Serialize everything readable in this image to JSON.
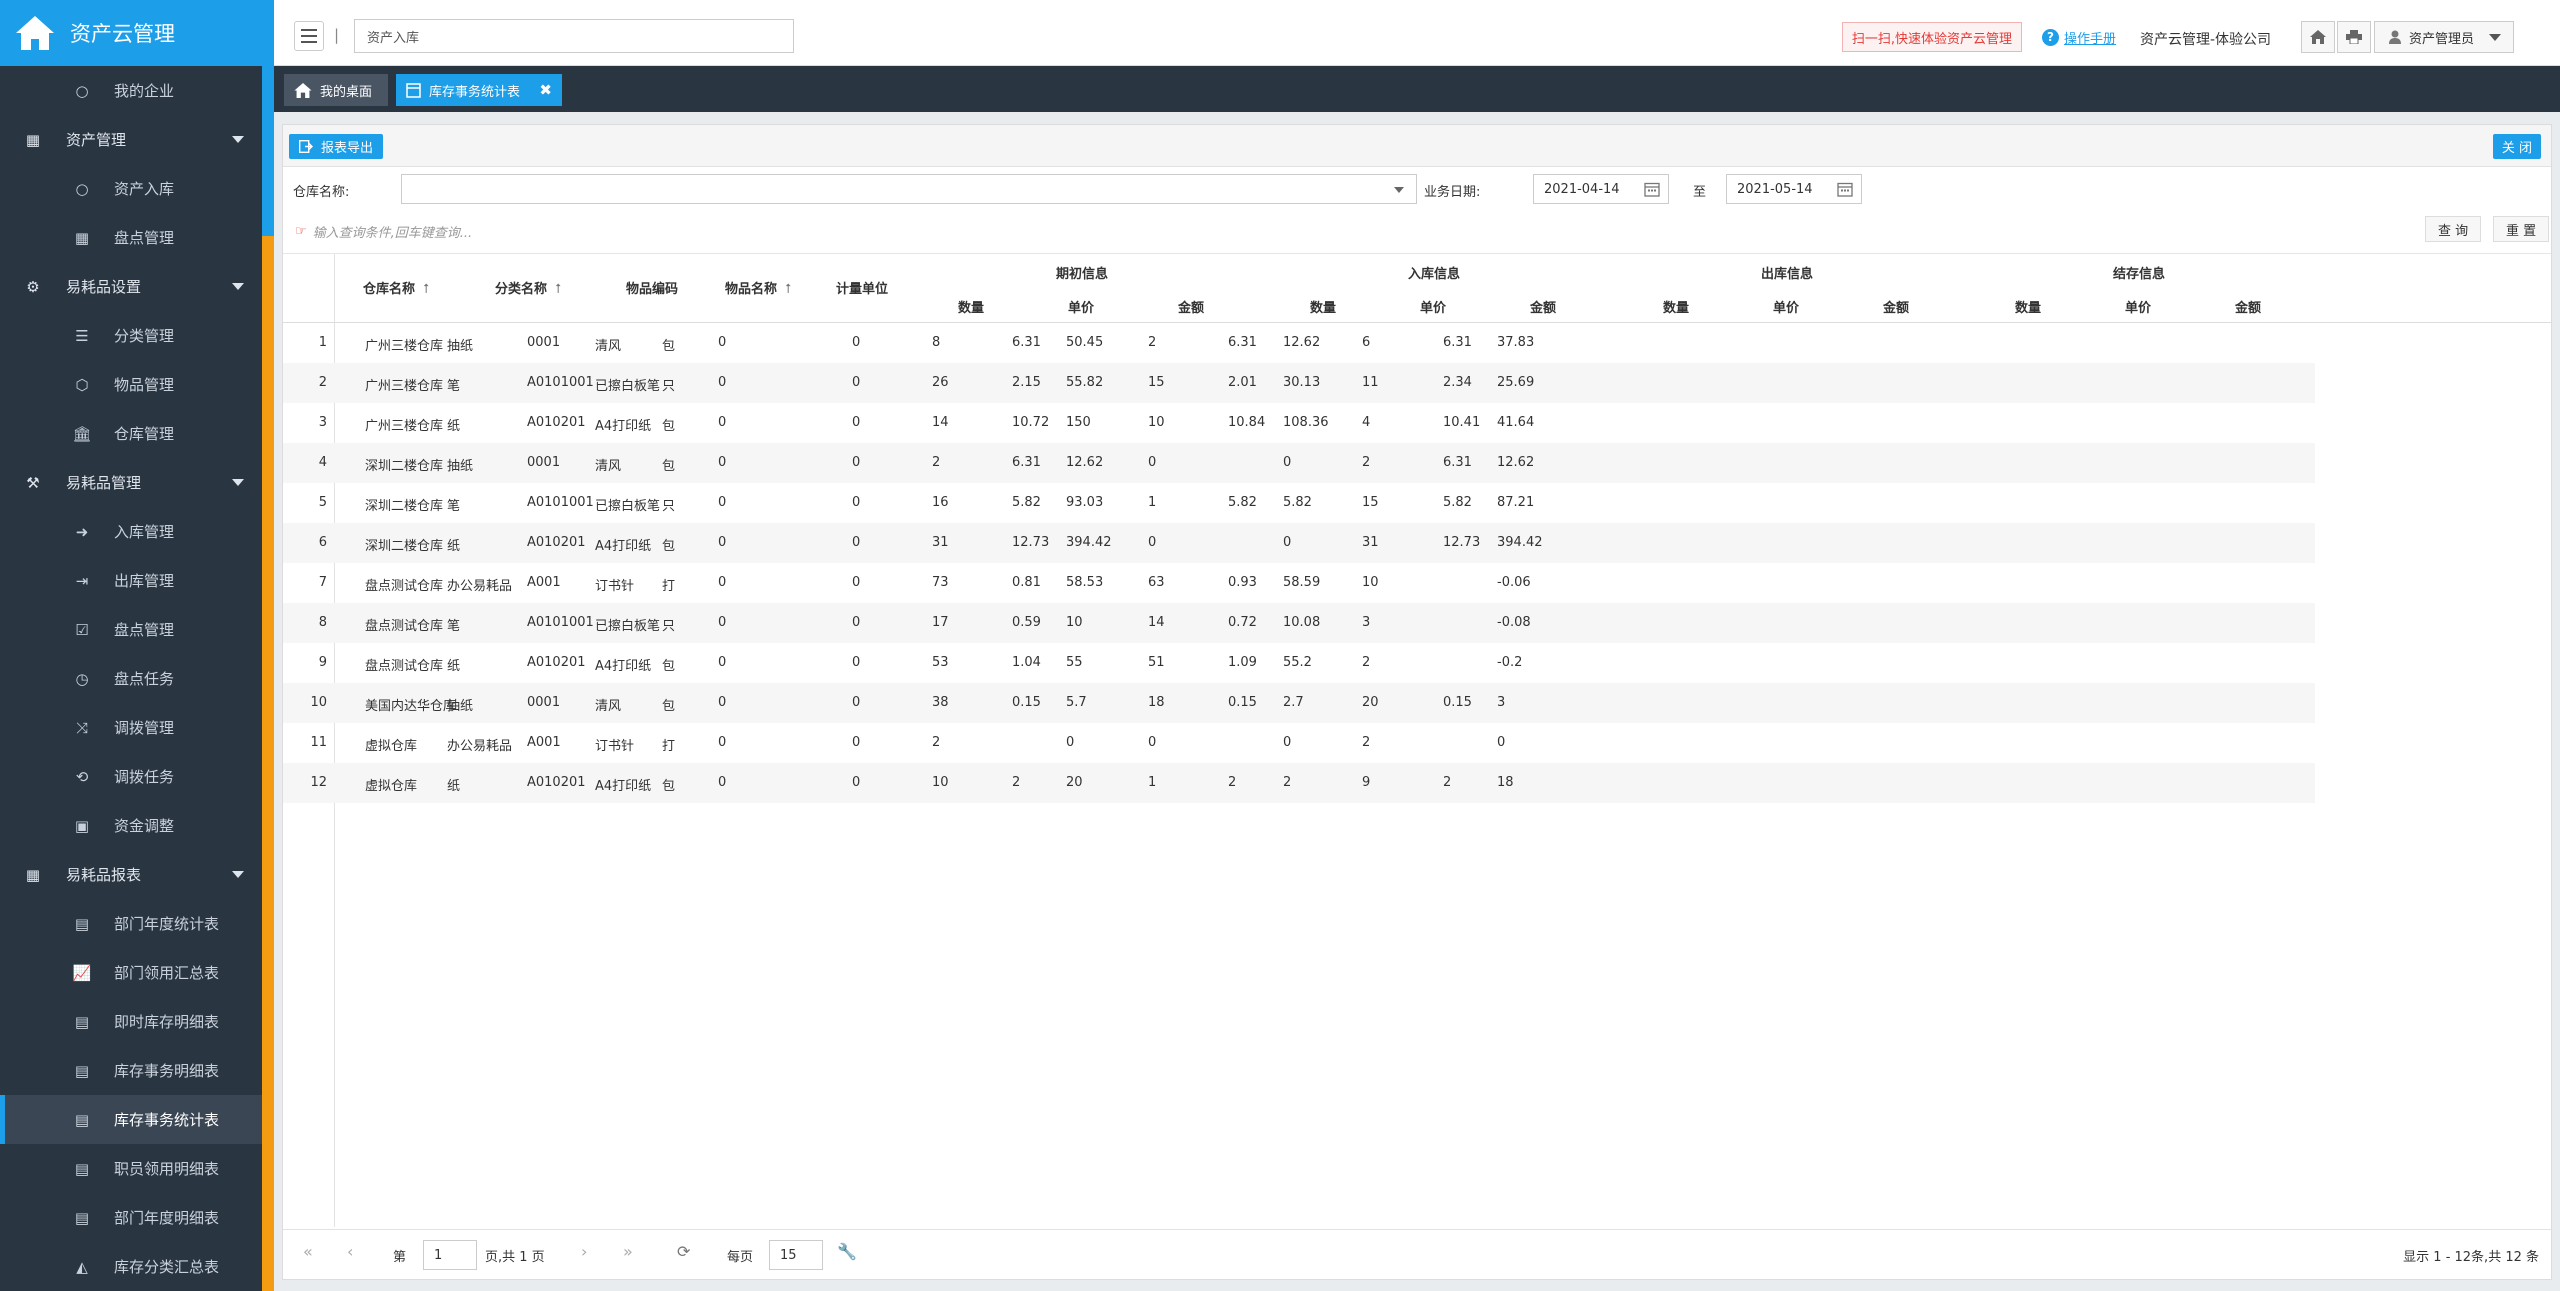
{
  "app": {
    "title": "资产云管理"
  },
  "sidebar": {
    "items": [
      {
        "kind": "sub",
        "icon": "circle-icon",
        "label": "我的企业"
      },
      {
        "kind": "group",
        "icon": "grid-icon",
        "label": "资产管理"
      },
      {
        "kind": "sub",
        "icon": "circle-icon",
        "label": "资产入库"
      },
      {
        "kind": "sub",
        "icon": "table-icon",
        "label": "盘点管理"
      },
      {
        "kind": "group",
        "icon": "gear-icon",
        "label": "易耗品设置"
      },
      {
        "kind": "sub",
        "icon": "list-icon",
        "label": "分类管理"
      },
      {
        "kind": "sub",
        "icon": "cube-icon",
        "label": "物品管理"
      },
      {
        "kind": "sub",
        "icon": "bank-icon",
        "label": "仓库管理"
      },
      {
        "kind": "group",
        "icon": "wrench-icon",
        "label": "易耗品管理"
      },
      {
        "kind": "sub",
        "icon": "sign-in-icon",
        "label": "入库管理"
      },
      {
        "kind": "sub",
        "icon": "sign-out-icon",
        "label": "出库管理"
      },
      {
        "kind": "sub",
        "icon": "check-square-icon",
        "label": "盘点管理"
      },
      {
        "kind": "sub",
        "icon": "clock-icon",
        "label": "盘点任务"
      },
      {
        "kind": "sub",
        "icon": "shuffle-icon",
        "label": "调拨管理"
      },
      {
        "kind": "sub",
        "icon": "retweet-icon",
        "label": "调拨任务"
      },
      {
        "kind": "sub",
        "icon": "money-icon",
        "label": "资金调整"
      },
      {
        "kind": "group",
        "icon": "table-icon",
        "label": "易耗品报表"
      },
      {
        "kind": "sub",
        "icon": "report-icon",
        "label": "部门年度统计表"
      },
      {
        "kind": "sub",
        "icon": "line-chart-icon",
        "label": "部门领用汇总表"
      },
      {
        "kind": "sub",
        "icon": "report-icon",
        "label": "即时库存明细表"
      },
      {
        "kind": "sub",
        "icon": "report-icon",
        "label": "库存事务明细表"
      },
      {
        "kind": "sub",
        "icon": "report-icon",
        "label": "库存事务统计表",
        "active": true
      },
      {
        "kind": "sub",
        "icon": "report-icon",
        "label": "职员领用明细表"
      },
      {
        "kind": "sub",
        "icon": "report-icon",
        "label": "部门年度明细表"
      },
      {
        "kind": "sub",
        "icon": "area-chart-icon",
        "label": "库存分类汇总表"
      }
    ]
  },
  "header": {
    "search_value": "资产入库",
    "scan_label": "扫一扫,快速体验资产云管理",
    "manual_label": "操作手册",
    "company": "资产云管理-体验公司",
    "user": "资产管理员"
  },
  "tabs": {
    "desk": "我的桌面",
    "report": "库存事务统计表"
  },
  "toolbar": {
    "export_label": "报表导出",
    "close_label": "关 闭"
  },
  "filters": {
    "warehouse_label": "仓库名称:",
    "date_label": "业务日期:",
    "date_from": "2021-04-14",
    "to_label": "至",
    "date_to": "2021-05-14",
    "hint": "输入查询条件,回车键查询...",
    "query_label": "查 询",
    "reset_label": "重 置"
  },
  "table": {
    "columns": {
      "warehouse": "仓库名称",
      "category": "分类名称",
      "code": "物品编码",
      "name": "物品名称",
      "unit": "计量单位"
    },
    "groups": {
      "opening": "期初信息",
      "inbound": "入库信息",
      "outbound": "出库信息",
      "closing": "结存信息"
    },
    "sub": {
      "qty": "数量",
      "price": "单价",
      "amount": "金额"
    },
    "rows": [
      [
        "1",
        "广州三楼仓库",
        "抽纸",
        "0001",
        "清风",
        "包",
        "0",
        "",
        "0",
        "8",
        "6.31",
        "50.45",
        "2",
        "6.31",
        "12.62",
        "6",
        "6.31",
        "37.83"
      ],
      [
        "2",
        "广州三楼仓库",
        "笔",
        "A0101001",
        "已擦白板笔",
        "只",
        "0",
        "",
        "0",
        "26",
        "2.15",
        "55.82",
        "15",
        "2.01",
        "30.13",
        "11",
        "2.34",
        "25.69"
      ],
      [
        "3",
        "广州三楼仓库",
        "纸",
        "A010201",
        "A4打印纸",
        "包",
        "0",
        "",
        "0",
        "14",
        "10.72",
        "150",
        "10",
        "10.84",
        "108.36",
        "4",
        "10.41",
        "41.64"
      ],
      [
        "4",
        "深圳二楼仓库",
        "抽纸",
        "0001",
        "清风",
        "包",
        "0",
        "",
        "0",
        "2",
        "6.31",
        "12.62",
        "0",
        "",
        "0",
        "2",
        "6.31",
        "12.62"
      ],
      [
        "5",
        "深圳二楼仓库",
        "笔",
        "A0101001",
        "已擦白板笔",
        "只",
        "0",
        "",
        "0",
        "16",
        "5.82",
        "93.03",
        "1",
        "5.82",
        "5.82",
        "15",
        "5.82",
        "87.21"
      ],
      [
        "6",
        "深圳二楼仓库",
        "纸",
        "A010201",
        "A4打印纸",
        "包",
        "0",
        "",
        "0",
        "31",
        "12.73",
        "394.42",
        "0",
        "",
        "0",
        "31",
        "12.73",
        "394.42"
      ],
      [
        "7",
        "盘点测试仓库",
        "办公易耗品",
        "A001",
        "订书针",
        "打",
        "0",
        "",
        "0",
        "73",
        "0.81",
        "58.53",
        "63",
        "0.93",
        "58.59",
        "10",
        "",
        "-0.06"
      ],
      [
        "8",
        "盘点测试仓库",
        "笔",
        "A0101001",
        "已擦白板笔",
        "只",
        "0",
        "",
        "0",
        "17",
        "0.59",
        "10",
        "14",
        "0.72",
        "10.08",
        "3",
        "",
        "-0.08"
      ],
      [
        "9",
        "盘点测试仓库",
        "纸",
        "A010201",
        "A4打印纸",
        "包",
        "0",
        "",
        "0",
        "53",
        "1.04",
        "55",
        "51",
        "1.09",
        "55.2",
        "2",
        "",
        "-0.2"
      ],
      [
        "10",
        "美国内达华仓库",
        "抽纸",
        "0001",
        "清风",
        "包",
        "0",
        "",
        "0",
        "38",
        "0.15",
        "5.7",
        "18",
        "0.15",
        "2.7",
        "20",
        "0.15",
        "3"
      ],
      [
        "11",
        "虚拟仓库",
        "办公易耗品",
        "A001",
        "订书针",
        "打",
        "0",
        "",
        "0",
        "2",
        "",
        "0",
        "0",
        "",
        "0",
        "2",
        "",
        "0"
      ],
      [
        "12",
        "虚拟仓库",
        "纸",
        "A010201",
        "A4打印纸",
        "包",
        "0",
        "",
        "0",
        "10",
        "2",
        "20",
        "1",
        "2",
        "2",
        "9",
        "2",
        "18"
      ]
    ]
  },
  "pager": {
    "page_prefix": "第",
    "page_value": "1",
    "page_suffix": "页,共 1 页",
    "per_page_label": "每页",
    "per_page_value": "15",
    "summary": "显示 1 - 12条,共 12 条"
  }
}
